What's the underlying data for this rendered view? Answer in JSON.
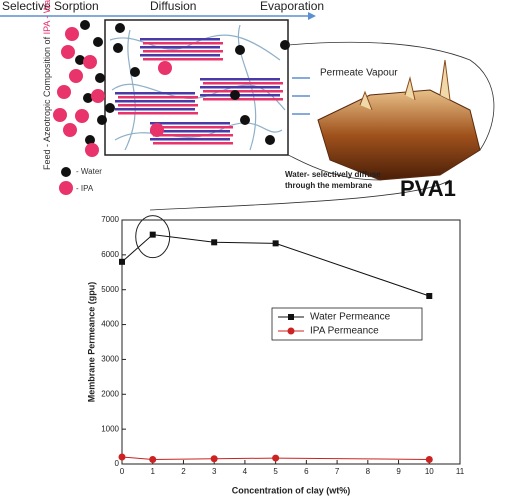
{
  "diagram": {
    "steps": [
      "Selective Sorption",
      "Diffusion",
      "Evaporation"
    ],
    "feed_label": "Feed - Azeotropic Composition of",
    "feed_mix": "IPA - Water",
    "water_legend": "- Water",
    "ipa_legend": "- IPA",
    "permeate": "Permeate Vapour",
    "diffuse_note": [
      "Water- selectively diffuse",
      "through the  membrane"
    ],
    "sample": "PVA1"
  },
  "chart_data": {
    "type": "line",
    "x": [
      0,
      1,
      3,
      5,
      10
    ],
    "series": [
      {
        "name": "Water Permeance",
        "color": "#111111",
        "marker": "square",
        "values": [
          5800,
          6580,
          6360,
          6330,
          4820
        ]
      },
      {
        "name": "IPA Permeance",
        "color": "#cc2222",
        "marker": "circle",
        "values": [
          200,
          130,
          150,
          170,
          130
        ]
      }
    ],
    "xlabel": "Concentration of clay (wt%)",
    "ylabel": "Membrane Permeance (gpu)",
    "xlim": [
      0,
      11
    ],
    "xticks": [
      0,
      1,
      2,
      3,
      4,
      5,
      6,
      7,
      8,
      9,
      10,
      11
    ],
    "ylim": [
      0,
      7000
    ],
    "yticks": [
      0,
      1000,
      2000,
      3000,
      4000,
      5000,
      6000,
      7000
    ]
  }
}
